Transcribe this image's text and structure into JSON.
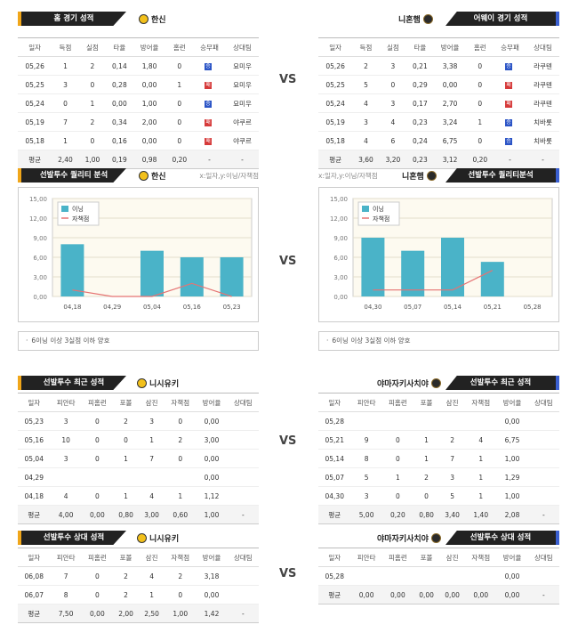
{
  "vs": "VS",
  "colors": {
    "bar": "#4ab3c8",
    "line": "#e57373",
    "plot_bg": "#fdfaf0"
  },
  "home": {
    "left": {
      "title": "홈 경기 성적",
      "team": "한신",
      "headers": [
        "일자",
        "득점",
        "실점",
        "타율",
        "방어율",
        "홈런",
        "승무패",
        "상대팀"
      ],
      "rows": [
        [
          "05,26",
          "1",
          "2",
          "0,14",
          "1,80",
          "0",
          "W",
          "요미우"
        ],
        [
          "05,25",
          "3",
          "0",
          "0,28",
          "0,00",
          "1",
          "L",
          "요미우"
        ],
        [
          "05,24",
          "0",
          "1",
          "0,00",
          "1,00",
          "0",
          "W",
          "요미우"
        ],
        [
          "05,19",
          "7",
          "2",
          "0,34",
          "2,00",
          "0",
          "L",
          "야쿠르"
        ],
        [
          "05,18",
          "1",
          "0",
          "0,16",
          "0,00",
          "0",
          "L",
          "야쿠르"
        ]
      ],
      "avg": [
        "평균",
        "2,40",
        "1,00",
        "0,19",
        "0,98",
        "0,20",
        "-",
        "-"
      ]
    },
    "right": {
      "title": "어웨이 경기 성적",
      "team": "니혼햄",
      "headers": [
        "일자",
        "득점",
        "실점",
        "타율",
        "방어율",
        "홈런",
        "승무패",
        "상대팀"
      ],
      "rows": [
        [
          "05,26",
          "2",
          "3",
          "0,21",
          "3,38",
          "0",
          "W",
          "라쿠텐"
        ],
        [
          "05,25",
          "5",
          "0",
          "0,29",
          "0,00",
          "0",
          "L",
          "라쿠텐"
        ],
        [
          "05,24",
          "4",
          "3",
          "0,17",
          "2,70",
          "0",
          "L",
          "라쿠텐"
        ],
        [
          "05,19",
          "3",
          "4",
          "0,23",
          "3,24",
          "1",
          "W",
          "치바롯"
        ],
        [
          "05,18",
          "4",
          "6",
          "0,24",
          "6,75",
          "0",
          "W",
          "치바롯"
        ]
      ],
      "avg": [
        "평균",
        "3,60",
        "3,20",
        "0,23",
        "3,12",
        "0,20",
        "-",
        "-"
      ]
    }
  },
  "win_letter": "승",
  "loss_letter": "패",
  "quality": {
    "left": {
      "title": "선발투수 퀄리티 분석",
      "team": "한신",
      "axis_note": "x:일자,y:이닝/자책점",
      "note": "6이닝 이상 3실점 이하 양호"
    },
    "right": {
      "title": "선발투수 퀄리티분석",
      "team": "니혼햄",
      "axis_note": "x:일자,y:이닝/자책점",
      "note": "6이닝 이상 3실점 이하 양호"
    }
  },
  "chart_data": [
    {
      "type": "bar",
      "categories": [
        "04,18",
        "04,29",
        "05,04",
        "05,16",
        "05,23"
      ],
      "y_ticks": [
        "0,00",
        "3,00",
        "6,00",
        "9,00",
        "12,00",
        "15,00"
      ],
      "ylim": [
        0,
        15
      ],
      "series": [
        {
          "name": "이닝",
          "values": [
            8,
            0,
            7,
            6,
            6
          ]
        },
        {
          "name": "자책점",
          "values": [
            1,
            0,
            0,
            2,
            0
          ]
        }
      ],
      "legend": "top-left"
    },
    {
      "type": "bar",
      "categories": [
        "04,30",
        "05,07",
        "05,14",
        "05,21",
        "05,28"
      ],
      "y_ticks": [
        "0,00",
        "3,00",
        "6,00",
        "9,00",
        "12,00",
        "15,00"
      ],
      "ylim": [
        0,
        15
      ],
      "series": [
        {
          "name": "이닝",
          "values": [
            9,
            7,
            9,
            5.3,
            0
          ]
        },
        {
          "name": "자책점",
          "values": [
            1,
            1,
            1,
            4,
            null
          ]
        }
      ],
      "legend": "top-left"
    }
  ],
  "recent": {
    "left": {
      "title": "선발투수 최근 성적",
      "pitcher": "니시유키",
      "headers": [
        "일자",
        "피안타",
        "피홈런",
        "포볼",
        "삼진",
        "자책점",
        "방어율",
        "상대팀"
      ],
      "rows": [
        [
          "05,23",
          "3",
          "0",
          "2",
          "3",
          "0",
          "0,00",
          ""
        ],
        [
          "05,16",
          "10",
          "0",
          "0",
          "1",
          "2",
          "3,00",
          ""
        ],
        [
          "05,04",
          "3",
          "0",
          "1",
          "7",
          "0",
          "0,00",
          ""
        ],
        [
          "04,29",
          "",
          "",
          "",
          "",
          "",
          "0,00",
          ""
        ],
        [
          "04,18",
          "4",
          "0",
          "1",
          "4",
          "1",
          "1,12",
          ""
        ]
      ],
      "avg": [
        "평균",
        "4,00",
        "0,00",
        "0,80",
        "3,00",
        "0,60",
        "1,00",
        "-"
      ]
    },
    "right": {
      "title": "선발투수 최근 성적",
      "pitcher": "야마자키사치야",
      "headers": [
        "일자",
        "피안타",
        "피홈런",
        "포볼",
        "삼진",
        "자책점",
        "방어율",
        "상대팀"
      ],
      "rows": [
        [
          "05,28",
          "",
          "",
          "",
          "",
          "",
          "0,00",
          ""
        ],
        [
          "05,21",
          "9",
          "0",
          "1",
          "2",
          "4",
          "6,75",
          ""
        ],
        [
          "05,14",
          "8",
          "0",
          "1",
          "7",
          "1",
          "1,00",
          ""
        ],
        [
          "05,07",
          "5",
          "1",
          "2",
          "3",
          "1",
          "1,29",
          ""
        ],
        [
          "04,30",
          "3",
          "0",
          "0",
          "5",
          "1",
          "1,00",
          ""
        ]
      ],
      "avg": [
        "평균",
        "5,00",
        "0,20",
        "0,80",
        "3,40",
        "1,40",
        "2,08",
        "-"
      ]
    }
  },
  "matchup": {
    "left": {
      "title": "선발투수 상대 성적",
      "pitcher": "니시유키",
      "headers": [
        "일자",
        "피안타",
        "피홈런",
        "포볼",
        "삼진",
        "자책점",
        "방어율",
        "상대팀"
      ],
      "rows": [
        [
          "06,08",
          "7",
          "0",
          "2",
          "4",
          "2",
          "3,18",
          ""
        ],
        [
          "06,07",
          "8",
          "0",
          "2",
          "1",
          "0",
          "0,00",
          ""
        ]
      ],
      "avg": [
        "평균",
        "7,50",
        "0,00",
        "2,00",
        "2,50",
        "1,00",
        "1,42",
        "-"
      ]
    },
    "right": {
      "title": "선발투수 상대 성적",
      "pitcher": "야마자키사치야",
      "headers": [
        "일자",
        "피안타",
        "피홈런",
        "포볼",
        "삼진",
        "자책점",
        "방어율",
        "상대팀"
      ],
      "rows": [
        [
          "05,28",
          "",
          "",
          "",
          "",
          "",
          "0,00",
          ""
        ]
      ],
      "avg": [
        "평균",
        "0,00",
        "0,00",
        "0,00",
        "0,00",
        "0,00",
        "0,00",
        "-"
      ]
    }
  }
}
